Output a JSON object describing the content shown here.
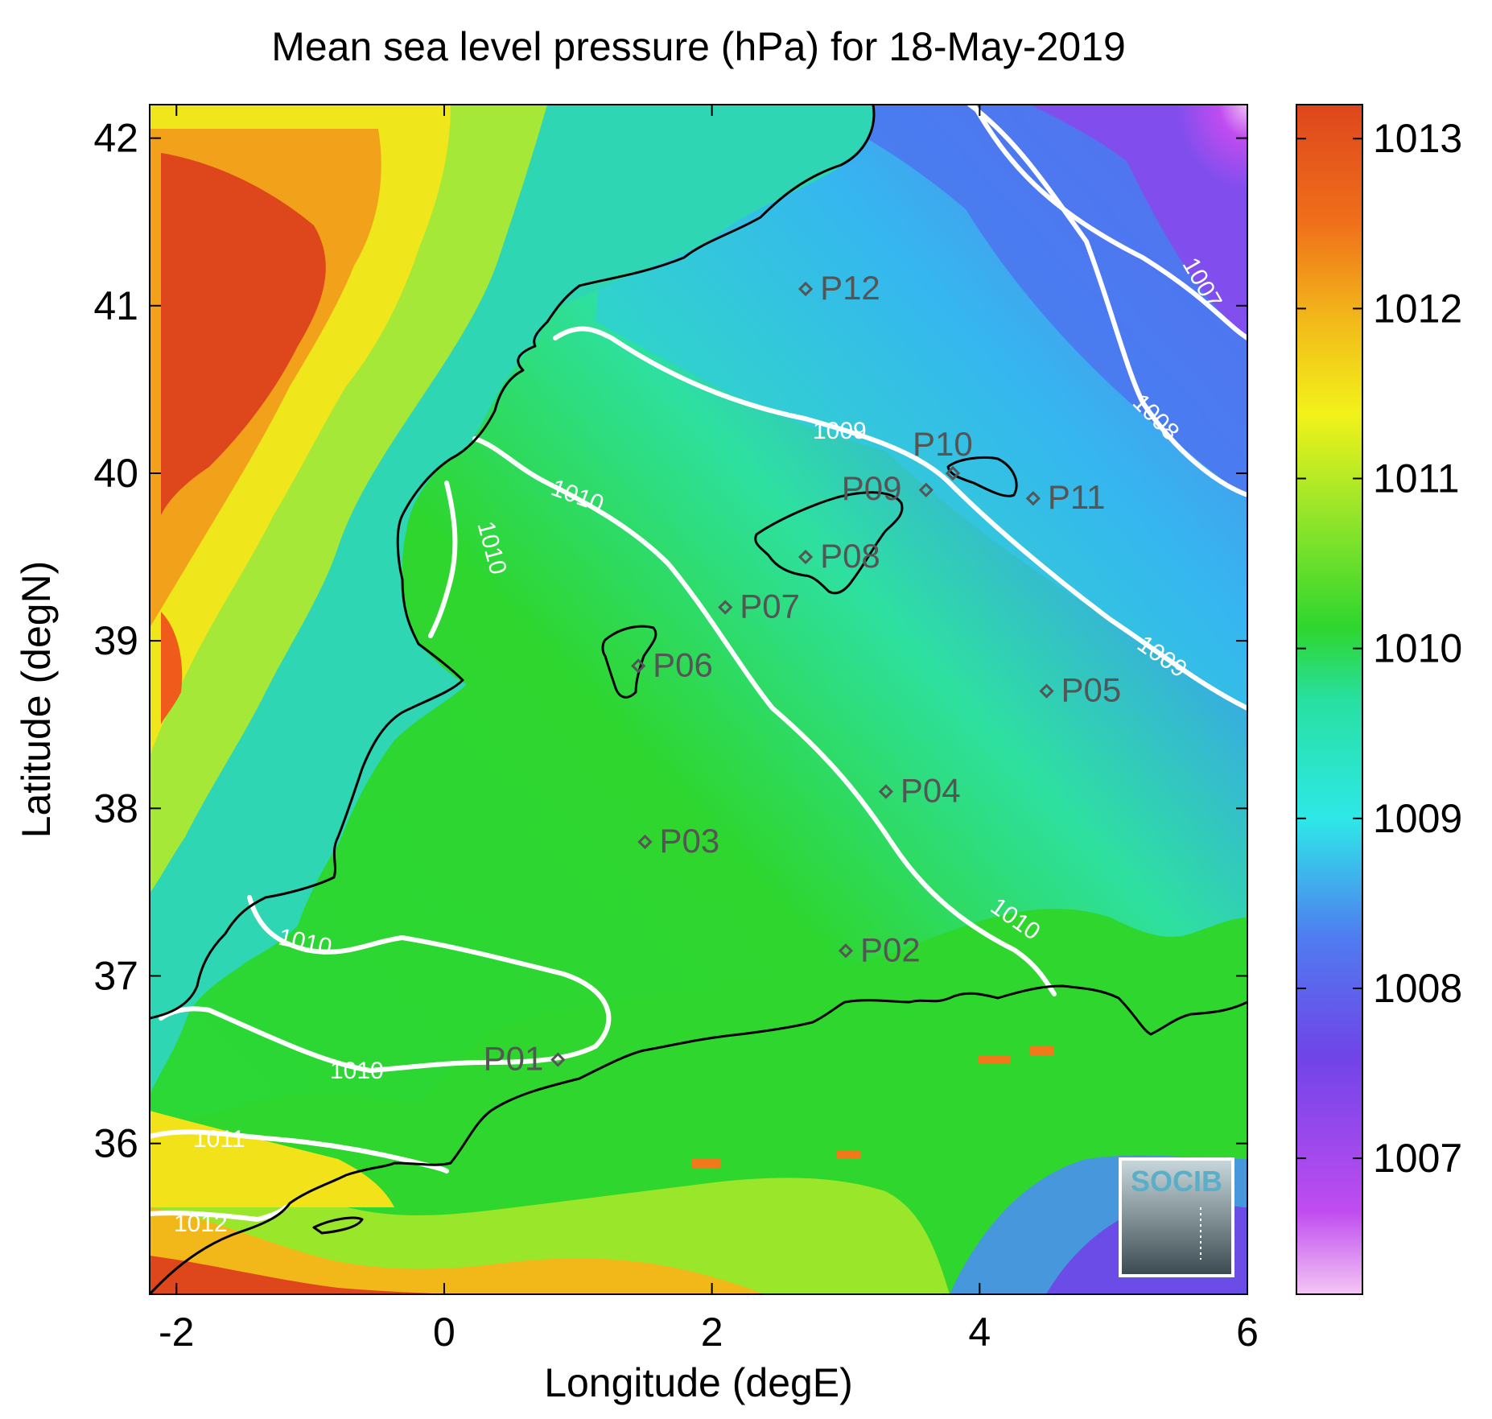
{
  "chart_data": {
    "type": "heatmap",
    "title": "Mean sea level pressure (hPa) for 18-May-2019",
    "xlabel": "Longitude (degE)",
    "ylabel": "Latitude (degN)",
    "xlim": [
      -2.2,
      6
    ],
    "ylim": [
      35.1,
      42.2
    ],
    "x_ticks": [
      -2,
      0,
      2,
      4,
      6
    ],
    "y_ticks": [
      36,
      37,
      38,
      39,
      40,
      41,
      42
    ],
    "colorbar": {
      "range": [
        1006.2,
        1013.2
      ],
      "ticks": [
        1007,
        1008,
        1009,
        1010,
        1011,
        1012,
        1013
      ]
    },
    "colors": {
      "land_high": "#e0461a",
      "land_mid": "#f2e21a",
      "sea": "#2ed62e",
      "low_pressure": "#7044e8",
      "contour": "#ffffff",
      "coastline": "#000000",
      "station": "#555555"
    },
    "contours": [
      {
        "level": 1007,
        "label": "1007"
      },
      {
        "level": 1008,
        "label": "1008"
      },
      {
        "level": 1009,
        "label": "1009"
      },
      {
        "level": 1010,
        "label": "1010"
      },
      {
        "level": 1011,
        "label": "1011"
      },
      {
        "level": 1012,
        "label": "1012"
      }
    ],
    "stations": [
      {
        "name": "P01",
        "lon": 0.85,
        "lat": 36.5
      },
      {
        "name": "P02",
        "lon": 3.0,
        "lat": 37.15
      },
      {
        "name": "P03",
        "lon": 1.5,
        "lat": 37.8
      },
      {
        "name": "P04",
        "lon": 3.3,
        "lat": 38.1
      },
      {
        "name": "P05",
        "lon": 4.5,
        "lat": 38.7
      },
      {
        "name": "P06",
        "lon": 1.45,
        "lat": 38.85
      },
      {
        "name": "P07",
        "lon": 2.1,
        "lat": 39.2
      },
      {
        "name": "P08",
        "lon": 2.7,
        "lat": 39.5
      },
      {
        "name": "P09",
        "lon": 3.6,
        "lat": 39.9
      },
      {
        "name": "P10",
        "lon": 3.8,
        "lat": 40.0
      },
      {
        "name": "P11",
        "lon": 4.4,
        "lat": 39.85
      },
      {
        "name": "P12",
        "lon": 2.7,
        "lat": 41.1
      }
    ]
  },
  "logo": {
    "text": "SOCIB"
  }
}
